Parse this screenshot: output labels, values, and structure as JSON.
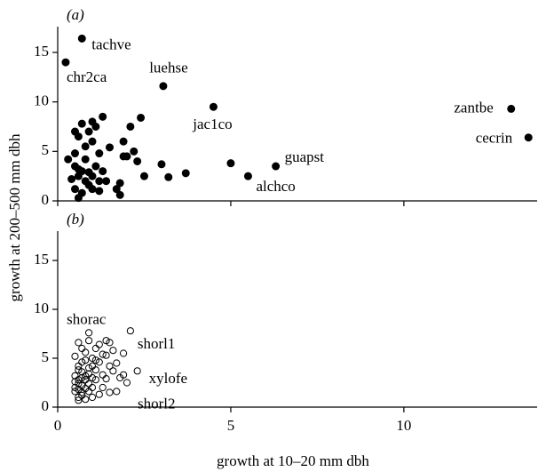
{
  "chart_data": [
    {
      "type": "scatter",
      "title": "(a)",
      "ylabel": "growth at 200–500 mm dbh",
      "xlim": [
        0,
        13.85
      ],
      "ylim": [
        0,
        17.6
      ],
      "xticks": [
        0,
        5,
        10
      ],
      "yticks": [
        0,
        5,
        10,
        15
      ],
      "xtick_labels": false,
      "marker": "filled",
      "x": [
        0.7,
        0.23,
        3.05,
        4.5,
        13.1,
        13.6,
        6.3,
        5.5,
        0.3,
        0.5,
        0.7,
        0.6,
        0.9,
        1.0,
        1.1,
        1.0,
        0.8,
        0.5,
        0.6,
        0.8,
        0.7,
        0.9,
        0.6,
        0.8,
        0.5,
        0.6,
        0.7,
        0.9,
        1.0,
        1.2,
        1.3,
        1.2,
        1.1,
        1.4,
        1.5,
        1.7,
        1.8,
        1.8,
        1.9,
        1.9,
        2.0,
        2.1,
        2.2,
        2.3,
        2.4,
        2.5,
        3.0,
        3.2,
        3.7,
        5.0,
        1.0,
        1.2,
        0.4,
        0.5,
        1.3
      ],
      "values": [
        16.4,
        14.0,
        11.6,
        9.5,
        9.3,
        6.4,
        3.5,
        2.5,
        4.2,
        7,
        7.8,
        6.5,
        7,
        8,
        7.5,
        6,
        5.5,
        4.8,
        3.2,
        4.2,
        3,
        2.9,
        2.5,
        2,
        1.2,
        0.3,
        0.8,
        1.6,
        1.2,
        2,
        8.5,
        4.8,
        3.5,
        2,
        5.4,
        1.2,
        0.6,
        1.8,
        4.5,
        6,
        4.5,
        7.5,
        5,
        4,
        8.4,
        2.5,
        3.7,
        2.4,
        2.8,
        3.8,
        2.5,
        1.0,
        2.2,
        3.5,
        3.0
      ],
      "names": [
        "tachve",
        "chr2ca",
        "luehse",
        "jac1co",
        "zantbe",
        "cecrin",
        "guapst",
        "alchco",
        null,
        null,
        null,
        null,
        null,
        null,
        null,
        null,
        null,
        null,
        null,
        null,
        null,
        null,
        null,
        null,
        null,
        null,
        null,
        null,
        null,
        null,
        null,
        null,
        null,
        null,
        null,
        null,
        null,
        null,
        null,
        null,
        null,
        null,
        null,
        null,
        null,
        null,
        null,
        null,
        null,
        null,
        null,
        null,
        null,
        null,
        null
      ]
    },
    {
      "type": "scatter",
      "title": "(b)",
      "xlabel": "growth at 10–20 mm dbh",
      "xlim": [
        0,
        13.85
      ],
      "ylim": [
        0,
        18
      ],
      "xticks": [
        0,
        5,
        10
      ],
      "yticks": [
        0,
        5,
        10,
        15
      ],
      "xtick_labels": true,
      "marker": "open",
      "x": [
        0.9,
        2.1,
        2.3,
        2.0,
        0.6,
        0.7,
        0.5,
        0.6,
        0.8,
        0.5,
        0.7,
        0.6,
        0.8,
        0.5,
        0.7,
        0.9,
        0.6,
        0.8,
        1.0,
        1.0,
        0.9,
        1.1,
        1.0,
        0.9,
        0.7,
        0.6,
        0.8,
        0.5,
        0.6,
        0.7,
        0.8,
        0.9,
        1.1,
        1.2,
        1.3,
        1.2,
        1.1,
        1.4,
        1.5,
        1.6,
        1.4,
        1.5,
        1.6,
        1.8,
        1.9,
        1.4,
        1.3,
        1.5,
        1.7,
        1.2,
        1.0,
        0.8,
        0.6,
        0.7,
        0.9,
        1.0,
        0.5,
        0.6,
        0.7,
        1.1,
        1.3,
        1.7,
        1.9
      ],
      "values": [
        7.6,
        7.8,
        3.7,
        2.5,
        1.0,
        1.5,
        2.0,
        2.4,
        2.8,
        3.2,
        3.6,
        4.2,
        4.8,
        5.2,
        6.0,
        6.8,
        6.6,
        5.6,
        5.0,
        4.2,
        3.4,
        2.8,
        2.0,
        1.6,
        2.2,
        2.8,
        3.2,
        1.6,
        0.7,
        1.2,
        1.9,
        2.4,
        3.8,
        4.6,
        5.4,
        6.4,
        6.0,
        6.8,
        6.6,
        5.8,
        5.3,
        4.2,
        3.7,
        3.0,
        3.3,
        2.9,
        2.0,
        1.5,
        1.6,
        1.3,
        1.0,
        0.8,
        1.8,
        3.0,
        4.0,
        3.0,
        2.6,
        3.8,
        4.6,
        4.8,
        3.3,
        4.5,
        5.5
      ],
      "names": [
        "shorac",
        "shorl1",
        "xylofe",
        "shorl2",
        null,
        null,
        null,
        null,
        null,
        null,
        null,
        null,
        null,
        null,
        null,
        null,
        null,
        null,
        null,
        null,
        null,
        null,
        null,
        null,
        null,
        null,
        null,
        null,
        null,
        null,
        null,
        null,
        null,
        null,
        null,
        null,
        null,
        null,
        null,
        null,
        null,
        null,
        null,
        null,
        null,
        null,
        null,
        null,
        null,
        null,
        null,
        null,
        null,
        null,
        null,
        null,
        null,
        null,
        null,
        null,
        null,
        null,
        null
      ]
    }
  ]
}
